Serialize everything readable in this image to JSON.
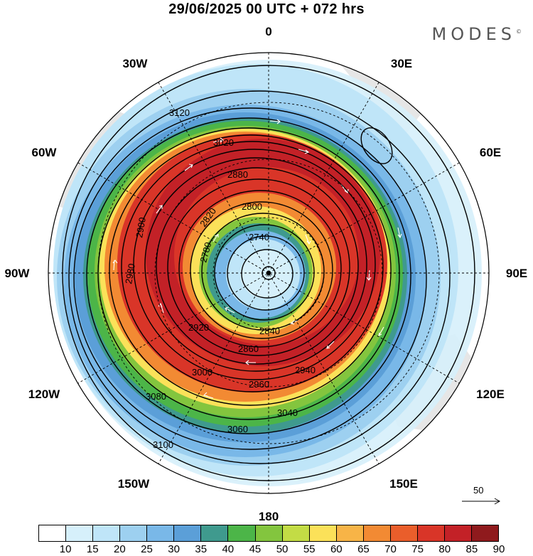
{
  "title": "29/06/2025  00 UTC  + 072 hrs",
  "brand": "MODES",
  "brand_mark": "©",
  "projection": "south-polar-stereographic",
  "longitude_labels": [
    "0",
    "30E",
    "60E",
    "90E",
    "120E",
    "150E",
    "180",
    "150W",
    "120W",
    "90W",
    "60W",
    "30W"
  ],
  "contour_labels": [
    "2740",
    "2780",
    "2800",
    "2820",
    "2840",
    "2860",
    "2880",
    "2900",
    "2920",
    "2940",
    "2960",
    "2980",
    "3000",
    "3020",
    "3040",
    "3060",
    "3080",
    "3100",
    "3120"
  ],
  "reference_vector": {
    "value": "50"
  },
  "colorbar": {
    "levels": [
      "10",
      "15",
      "20",
      "25",
      "30",
      "35",
      "40",
      "45",
      "50",
      "55",
      "60",
      "65",
      "70",
      "75",
      "80",
      "85",
      "90"
    ],
    "colors": [
      "#ffffff",
      "#d6f0fb",
      "#bfe5f8",
      "#9dd0f0",
      "#79b8e8",
      "#5b9fd8",
      "#3f9a8e",
      "#4cb548",
      "#83c53e",
      "#c3dc45",
      "#fbe159",
      "#f7b447",
      "#f28a33",
      "#ea5e2b",
      "#d93528",
      "#c32127",
      "#8f1a1d"
    ]
  }
}
